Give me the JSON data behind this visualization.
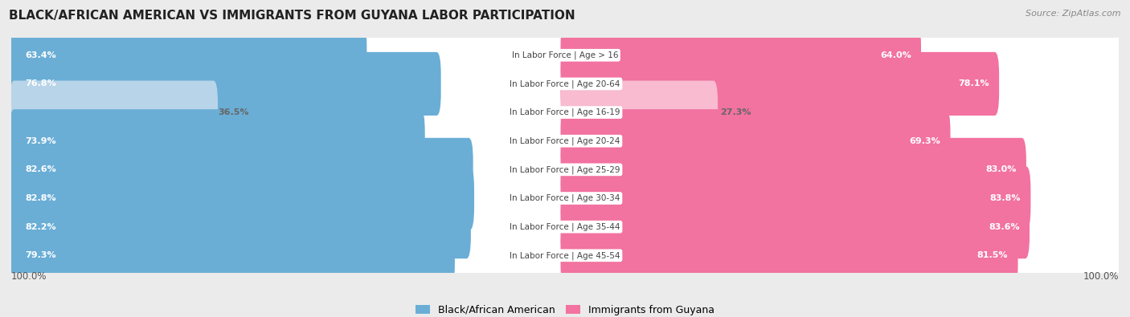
{
  "title": "BLACK/AFRICAN AMERICAN VS IMMIGRANTS FROM GUYANA LABOR PARTICIPATION",
  "source": "Source: ZipAtlas.com",
  "categories": [
    "In Labor Force | Age > 16",
    "In Labor Force | Age 20-64",
    "In Labor Force | Age 16-19",
    "In Labor Force | Age 20-24",
    "In Labor Force | Age 25-29",
    "In Labor Force | Age 30-34",
    "In Labor Force | Age 35-44",
    "In Labor Force | Age 45-54"
  ],
  "black_values": [
    63.4,
    76.8,
    36.5,
    73.9,
    82.6,
    82.8,
    82.2,
    79.3
  ],
  "guyana_values": [
    64.0,
    78.1,
    27.3,
    69.3,
    83.0,
    83.8,
    83.6,
    81.5
  ],
  "black_color_strong": "#6aaed6",
  "black_color_light": "#b8d4e8",
  "guyana_color_strong": "#f272a0",
  "guyana_color_light": "#f8bbd0",
  "label_white": "#ffffff",
  "label_dark": "#666666",
  "bg_color": "#ebebeb",
  "row_bg_color": "#ffffff",
  "center_label_color": "#444444",
  "threshold_strong": 50,
  "max_value": 100.0,
  "legend_black": "Black/African American",
  "legend_guyana": "Immigrants from Guyana",
  "title_fontsize": 11,
  "source_fontsize": 8,
  "label_fontsize": 8,
  "cat_fontsize": 7.5
}
